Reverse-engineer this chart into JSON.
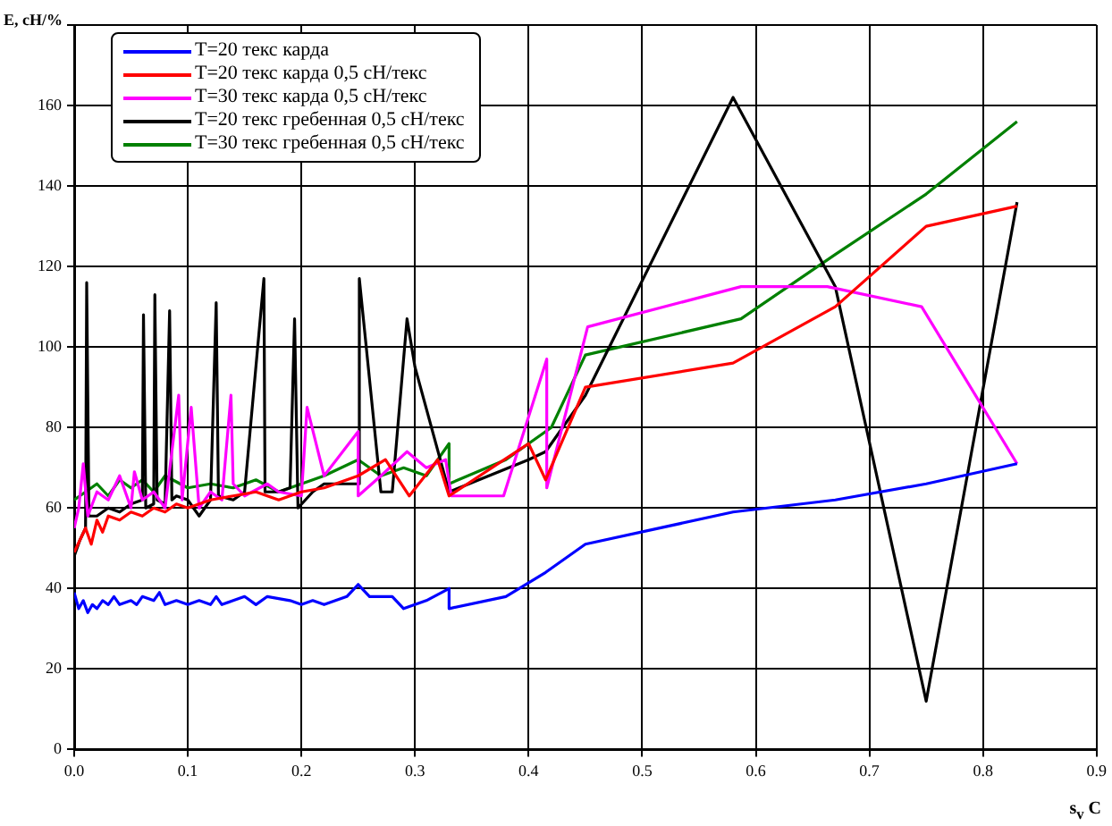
{
  "chart_data": {
    "type": "line",
    "ylabel": "E, сН/%",
    "xlabel": "s$_{v}$ С",
    "xlim": [
      0,
      0.9
    ],
    "ylim": [
      0,
      180
    ],
    "xticks": [
      {
        "value": 0,
        "label": "0.0"
      },
      0.1,
      0.2,
      0.3,
      0.4,
      0.5,
      0.6,
      0.7,
      0.8,
      0.9
    ],
    "yticks": [
      0,
      20,
      40,
      60,
      80,
      100,
      120,
      140,
      160,
      {
        "value": 180,
        "label": null
      }
    ],
    "grid": true,
    "legend": "top left",
    "marker": "none",
    "line_style": "solid",
    "series": [
      {
        "name": "T=20 текс карда",
        "color": "#0000ff",
        "x": [
          0,
          0.004,
          0.008,
          0.012,
          0.016,
          0.02,
          0.025,
          0.03,
          0.035,
          0.04,
          0.05,
          0.055,
          0.06,
          0.07,
          0.075,
          0.08,
          0.09,
          0.1,
          0.11,
          0.12,
          0.125,
          0.13,
          0.14,
          0.15,
          0.16,
          0.17,
          0.19,
          0.2,
          0.21,
          0.22,
          0.24,
          0.25,
          0.26,
          0.28,
          0.29,
          0.31,
          0.33,
          0.33,
          0.38,
          0.415,
          0.45,
          0.58,
          0.67,
          0.75,
          0.83
        ],
        "values": [
          39,
          35,
          37,
          34,
          36,
          35,
          37,
          36,
          38,
          36,
          37,
          36,
          38,
          37,
          39,
          36,
          37,
          36,
          37,
          36,
          38,
          36,
          37,
          38,
          36,
          38,
          37,
          36,
          37,
          36,
          38,
          41,
          38,
          38,
          35,
          37,
          40,
          35,
          38,
          44,
          51,
          59,
          62,
          66,
          71
        ]
      },
      {
        "name": "T=20 текс карда 0,5 сН/текс",
        "color": "#ff0000",
        "x": [
          0,
          0.005,
          0.01,
          0.015,
          0.02,
          0.025,
          0.03,
          0.04,
          0.05,
          0.06,
          0.07,
          0.08,
          0.09,
          0.1,
          0.12,
          0.14,
          0.16,
          0.18,
          0.2,
          0.22,
          0.25,
          0.274,
          0.295,
          0.32,
          0.33,
          0.4,
          0.415,
          0.45,
          0.58,
          0.67,
          0.75,
          0.83
        ],
        "values": [
          49,
          52,
          55,
          51,
          57,
          54,
          58,
          57,
          59,
          58,
          60,
          59,
          61,
          60,
          62,
          63,
          64,
          62,
          64,
          65,
          68,
          72,
          63,
          72,
          63,
          76,
          67,
          90,
          96,
          110,
          130,
          135
        ]
      },
      {
        "name": "T=30 текс карда 0,5 сН/текс",
        "color": "#ff00ff",
        "x": [
          0,
          0.004,
          0.008,
          0.012,
          0.02,
          0.03,
          0.04,
          0.05,
          0.053,
          0.06,
          0.07,
          0.08,
          0.092,
          0.095,
          0.103,
          0.11,
          0.12,
          0.13,
          0.138,
          0.14,
          0.15,
          0.17,
          0.18,
          0.2,
          0.205,
          0.22,
          0.25,
          0.25,
          0.27,
          0.293,
          0.31,
          0.327,
          0.332,
          0.378,
          0.416,
          0.416,
          0.452,
          0.587,
          0.663,
          0.746,
          0.83
        ],
        "values": [
          55,
          60,
          71,
          58,
          64,
          62,
          68,
          60,
          69,
          62,
          64,
          60,
          88,
          62,
          85,
          60,
          64,
          62,
          88,
          66,
          63,
          66,
          64,
          63,
          85,
          68,
          79,
          63,
          68,
          74,
          70,
          72,
          63,
          63,
          97,
          65,
          105,
          115,
          115,
          110,
          71
        ]
      },
      {
        "name": "T=20 текс гребенная 0,5 сН/текс",
        "color": "#000000",
        "x": [
          0,
          0.005,
          0.01,
          0.011,
          0.013,
          0.02,
          0.03,
          0.04,
          0.05,
          0.06,
          0.061,
          0.063,
          0.07,
          0.071,
          0.073,
          0.08,
          0.084,
          0.086,
          0.09,
          0.1,
          0.11,
          0.12,
          0.125,
          0.127,
          0.14,
          0.15,
          0.167,
          0.168,
          0.18,
          0.19,
          0.194,
          0.197,
          0.21,
          0.22,
          0.25,
          0.251,
          0.27,
          0.28,
          0.293,
          0.3,
          0.33,
          0.4,
          0.415,
          0.45,
          0.58,
          0.67,
          0.75,
          0.83
        ],
        "values": [
          48,
          52,
          55,
          116,
          58,
          58,
          60,
          59,
          61,
          62,
          108,
          60,
          61,
          113,
          62,
          61,
          109,
          62,
          63,
          62,
          58,
          62,
          111,
          63,
          62,
          64,
          117,
          64,
          64,
          65,
          107,
          60,
          64,
          66,
          66,
          117,
          64,
          64,
          107,
          95,
          64,
          72,
          74,
          88,
          162,
          115,
          12,
          136
        ]
      },
      {
        "name": "T=30 текс гребенная 0,5 сН/текс",
        "color": "#008000",
        "x": [
          0,
          0.01,
          0.02,
          0.03,
          0.04,
          0.05,
          0.06,
          0.07,
          0.08,
          0.1,
          0.12,
          0.14,
          0.16,
          0.18,
          0.2,
          0.22,
          0.25,
          0.27,
          0.29,
          0.31,
          0.33,
          0.33,
          0.38,
          0.42,
          0.45,
          0.587,
          0.67,
          0.75,
          0.83
        ],
        "values": [
          62,
          64,
          66,
          63,
          67,
          65,
          67,
          64,
          68,
          65,
          66,
          65,
          67,
          64,
          66,
          68,
          72,
          68,
          70,
          68,
          76,
          66,
          72,
          80,
          98,
          107,
          123,
          138,
          156
        ]
      }
    ]
  }
}
